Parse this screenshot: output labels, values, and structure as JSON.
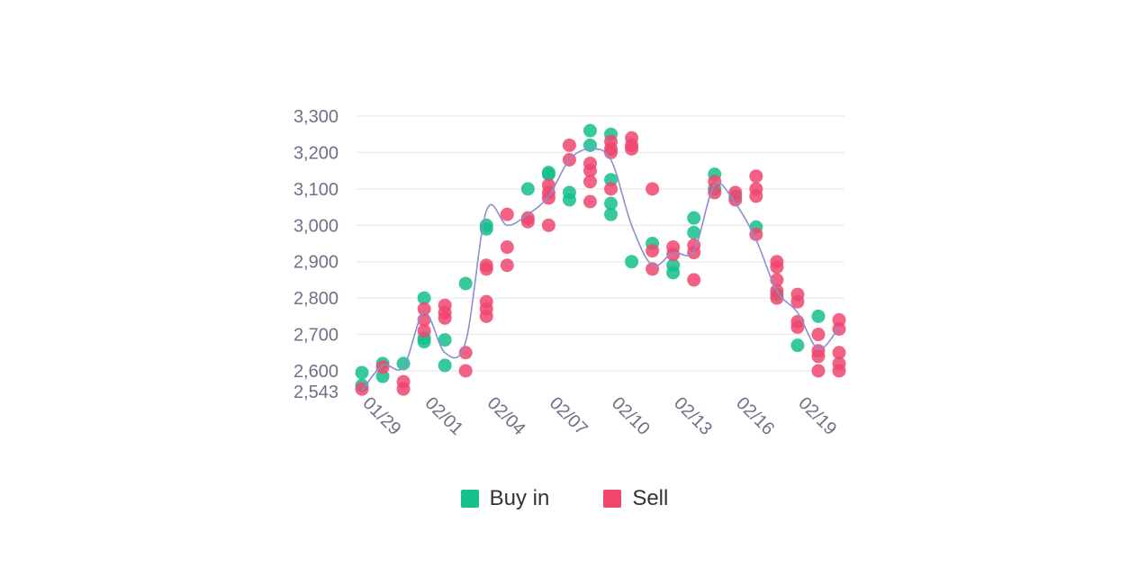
{
  "chart_data": {
    "type": "scatter",
    "x_ticks": [
      "01/29",
      "02/01",
      "02/04",
      "02/07",
      "02/10",
      "02/13",
      "02/16",
      "02/19"
    ],
    "y_ticks": [
      2543,
      2600,
      2700,
      2800,
      2900,
      3000,
      3100,
      3200,
      3300
    ],
    "y_tick_labels": [
      "2,543",
      "2,600",
      "2,700",
      "2,800",
      "2,900",
      "3,000",
      "3,100",
      "3,200",
      "3,300"
    ],
    "ylim": [
      2543,
      3300
    ],
    "x_range": [
      "01/29",
      "02/21"
    ],
    "grid": true,
    "legend_placement": "bottom",
    "colors": {
      "buy": "#14c08c",
      "sell": "#f0466e",
      "line": "#8a8fd4",
      "grid": "#eeeeee"
    },
    "series": [
      {
        "name": "Buy in",
        "points": [
          [
            "01/29",
            2595
          ],
          [
            "01/29",
            2560
          ],
          [
            "01/30",
            2620
          ],
          [
            "01/30",
            2585
          ],
          [
            "01/31",
            2620
          ],
          [
            "02/01",
            2800
          ],
          [
            "02/01",
            2690
          ],
          [
            "02/01",
            2680
          ],
          [
            "02/02",
            2685
          ],
          [
            "02/02",
            2615
          ],
          [
            "02/03",
            2840
          ],
          [
            "02/04",
            2990
          ],
          [
            "02/04",
            3000
          ],
          [
            "02/06",
            3100
          ],
          [
            "02/07",
            3145
          ],
          [
            "02/07",
            3140
          ],
          [
            "02/08",
            3090
          ],
          [
            "02/08",
            3070
          ],
          [
            "02/09",
            3260
          ],
          [
            "02/09",
            3220
          ],
          [
            "02/10",
            3250
          ],
          [
            "02/10",
            3125
          ],
          [
            "02/10",
            3060
          ],
          [
            "02/10",
            3030
          ],
          [
            "02/11",
            2900
          ],
          [
            "02/12",
            2950
          ],
          [
            "02/13",
            2890
          ],
          [
            "02/13",
            2870
          ],
          [
            "02/14",
            3020
          ],
          [
            "02/14",
            2980
          ],
          [
            "02/15",
            3140
          ],
          [
            "02/15",
            3100
          ],
          [
            "02/16",
            3080
          ],
          [
            "02/17",
            2995
          ],
          [
            "02/18",
            2810
          ],
          [
            "02/19",
            2670
          ],
          [
            "02/20",
            2750
          ]
        ]
      },
      {
        "name": "Sell",
        "points": [
          [
            "01/29",
            2550
          ],
          [
            "01/30",
            2610
          ],
          [
            "01/31",
            2570
          ],
          [
            "01/31",
            2550
          ],
          [
            "02/01",
            2770
          ],
          [
            "02/01",
            2740
          ],
          [
            "02/01",
            2710
          ],
          [
            "02/02",
            2780
          ],
          [
            "02/02",
            2760
          ],
          [
            "02/02",
            2745
          ],
          [
            "02/03",
            2650
          ],
          [
            "02/03",
            2600
          ],
          [
            "02/04",
            2890
          ],
          [
            "02/04",
            2880
          ],
          [
            "02/04",
            2790
          ],
          [
            "02/04",
            2770
          ],
          [
            "02/04",
            2750
          ],
          [
            "02/05",
            3030
          ],
          [
            "02/05",
            2940
          ],
          [
            "02/05",
            2890
          ],
          [
            "02/06",
            3020
          ],
          [
            "02/06",
            3010
          ],
          [
            "02/07",
            3110
          ],
          [
            "02/07",
            3090
          ],
          [
            "02/07",
            3075
          ],
          [
            "02/07",
            3000
          ],
          [
            "02/08",
            3220
          ],
          [
            "02/08",
            3180
          ],
          [
            "02/09",
            3170
          ],
          [
            "02/09",
            3150
          ],
          [
            "02/09",
            3120
          ],
          [
            "02/09",
            3065
          ],
          [
            "02/10",
            3230
          ],
          [
            "02/10",
            3210
          ],
          [
            "02/10",
            3200
          ],
          [
            "02/10",
            3100
          ],
          [
            "02/11",
            3240
          ],
          [
            "02/11",
            3220
          ],
          [
            "02/11",
            3210
          ],
          [
            "02/12",
            3100
          ],
          [
            "02/12",
            2930
          ],
          [
            "02/12",
            2880
          ],
          [
            "02/13",
            2940
          ],
          [
            "02/13",
            2920
          ],
          [
            "02/14",
            2945
          ],
          [
            "02/14",
            2925
          ],
          [
            "02/14",
            2850
          ],
          [
            "02/15",
            3120
          ],
          [
            "02/15",
            3090
          ],
          [
            "02/16",
            3090
          ],
          [
            "02/16",
            3070
          ],
          [
            "02/17",
            3135
          ],
          [
            "02/17",
            3100
          ],
          [
            "02/17",
            3080
          ],
          [
            "02/17",
            2975
          ],
          [
            "02/18",
            2900
          ],
          [
            "02/18",
            2885
          ],
          [
            "02/18",
            2850
          ],
          [
            "02/18",
            2820
          ],
          [
            "02/18",
            2800
          ],
          [
            "02/19",
            2810
          ],
          [
            "02/19",
            2790
          ],
          [
            "02/19",
            2735
          ],
          [
            "02/19",
            2720
          ],
          [
            "02/20",
            2700
          ],
          [
            "02/20",
            2655
          ],
          [
            "02/20",
            2640
          ],
          [
            "02/20",
            2600
          ],
          [
            "02/21",
            2740
          ],
          [
            "02/21",
            2715
          ],
          [
            "02/21",
            2650
          ],
          [
            "02/21",
            2620
          ],
          [
            "02/21",
            2600
          ]
        ]
      }
    ],
    "trend_line": [
      [
        "01/29",
        2545
      ],
      [
        "01/30",
        2615
      ],
      [
        "01/31",
        2610
      ],
      [
        "02/01",
        2760
      ],
      [
        "02/02",
        2650
      ],
      [
        "02/03",
        2680
      ],
      [
        "02/04",
        3040
      ],
      [
        "02/05",
        3000
      ],
      [
        "02/06",
        3030
      ],
      [
        "02/07",
        3080
      ],
      [
        "02/08",
        3180
      ],
      [
        "02/09",
        3210
      ],
      [
        "02/10",
        3180
      ],
      [
        "02/11",
        3000
      ],
      [
        "02/12",
        2890
      ],
      [
        "02/13",
        2925
      ],
      [
        "02/14",
        2930
      ],
      [
        "02/15",
        3110
      ],
      [
        "02/16",
        3060
      ],
      [
        "02/17",
        2960
      ],
      [
        "02/18",
        2820
      ],
      [
        "02/19",
        2760
      ],
      [
        "02/20",
        2660
      ],
      [
        "02/21",
        2720
      ]
    ]
  },
  "legend": {
    "buy_label": "Buy in",
    "sell_label": "Sell"
  }
}
